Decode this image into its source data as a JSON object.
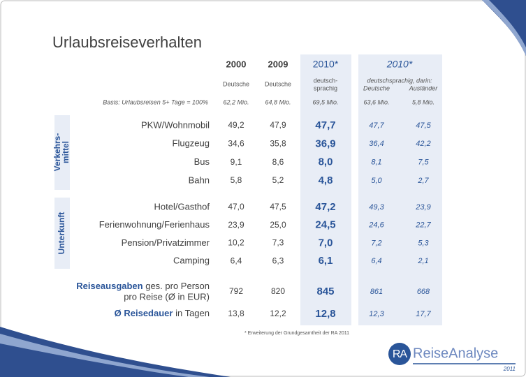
{
  "header": {
    "title": "Urlaubsreiseverhalten"
  },
  "columns": [
    {
      "year": "2000",
      "sub": [
        "Deutsche"
      ],
      "basis": "62,2 Mio."
    },
    {
      "year": "2009",
      "sub": [
        "Deutsche"
      ],
      "basis": "64,8 Mio."
    },
    {
      "year": "2010*",
      "sub": [
        "deutsch-",
        "sprachig"
      ],
      "basis": "69,5 Mio."
    }
  ],
  "group": {
    "year": "2010*",
    "sub": "deutschsprachig, darin:",
    "subcolumns": [
      "Deutsche",
      "Ausländer"
    ],
    "basis": [
      "63,6 Mio.",
      "5,8 Mio."
    ]
  },
  "basis_label": "Basis: Urlaubsreisen 5+ Tage = 100%",
  "sections": [
    {
      "label": [
        "Verkehrs-",
        "mittel"
      ],
      "rows": [
        {
          "label": "PKW/Wohnmobil",
          "values": [
            "49,2",
            "47,9",
            "47,7",
            "47,7",
            "47,5"
          ]
        },
        {
          "label": "Flugzeug",
          "values": [
            "34,6",
            "35,8",
            "36,9",
            "36,4",
            "42,2"
          ]
        },
        {
          "label": "Bus",
          "values": [
            "9,1",
            "8,6",
            "8,0",
            "8,1",
            "7,5"
          ]
        },
        {
          "label": "Bahn",
          "values": [
            "5,8",
            "5,2",
            "4,8",
            "5,0",
            "2,7"
          ]
        }
      ]
    },
    {
      "label": [
        "Unterkunft"
      ],
      "rows": [
        {
          "label": "Hotel/Gasthof",
          "values": [
            "47,0",
            "47,5",
            "47,2",
            "49,3",
            "23,9"
          ]
        },
        {
          "label": "Ferienwohnung/Ferienhaus",
          "values": [
            "23,9",
            "25,0",
            "24,5",
            "24,6",
            "22,7"
          ]
        },
        {
          "label": "Pension/Privatzimmer",
          "values": [
            "10,2",
            "7,3",
            "7,0",
            "7,2",
            "5,3"
          ]
        },
        {
          "label": "Camping",
          "values": [
            "6,4",
            "6,3",
            "6,1",
            "6,4",
            "2,1"
          ]
        }
      ]
    }
  ],
  "summary": [
    {
      "label": [
        "Reiseausgaben",
        " ges. pro Person",
        "pro Reise (Ø in EUR)"
      ],
      "values": [
        "792",
        "820",
        "845",
        "861",
        "668"
      ]
    },
    {
      "label": [
        "Ø Reisedauer",
        " in Tagen"
      ],
      "values": [
        "13,8",
        "12,2",
        "12,8",
        "12,3",
        "17,7"
      ]
    }
  ],
  "footnote": "* Erweiterung der Grundgesamtheit der RA 2011",
  "logo": {
    "mark": "RA",
    "name": "ReiseAnalyse",
    "year": "2011"
  }
}
